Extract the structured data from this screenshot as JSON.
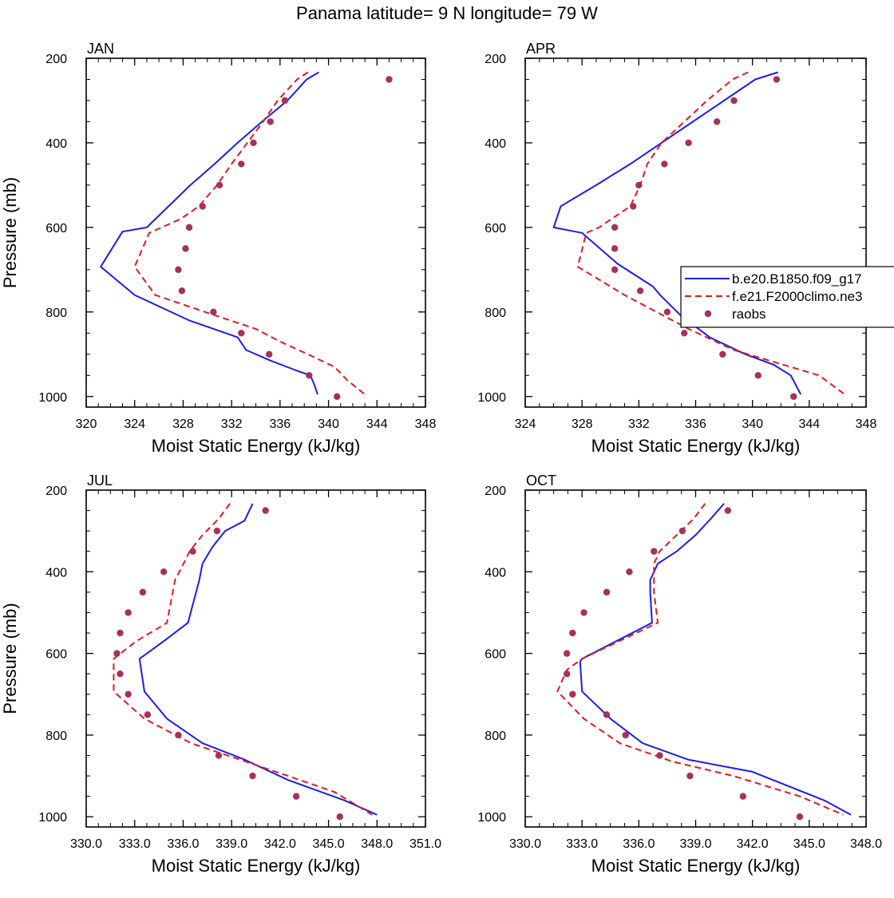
{
  "figure": {
    "title": "Panama  latitude= 9 N longitude= 79 W"
  },
  "colors": {
    "model_b": "#1c1cf0",
    "model_f": "#e81818",
    "raobs": "#a8305a"
  },
  "legend": {
    "placement": "right-center of APR panel",
    "entries": [
      {
        "label": "b.e20.B1850.f09_g17",
        "style": "solid"
      },
      {
        "label": "f.e21.F2000climo.ne3",
        "style": "dashed"
      },
      {
        "label": "raobs",
        "style": "dots"
      }
    ]
  },
  "chart_data": [
    {
      "type": "line",
      "title": "JAN",
      "xlabel": "Moist Static Energy (kJ/kg)",
      "ylabel": "Pressure (mb)",
      "xlim": [
        320,
        348
      ],
      "ylim": [
        200,
        1025
      ],
      "y_inverted": true,
      "xticks": [
        "320",
        "324",
        "328",
        "332",
        "336",
        "340",
        "344",
        "348"
      ],
      "yticks": [
        "200",
        "400",
        "600",
        "800",
        "1000"
      ],
      "series": [
        {
          "name": "b.e20.B1850.f09_g17",
          "style": "solid",
          "x": [
            339.2,
            338.2,
            336.6,
            334.5,
            332.5,
            330.6,
            328.6,
            326.8,
            325.0,
            323.0,
            321.2,
            324.0,
            328.5,
            332.5,
            333.2,
            335.2,
            337.5,
            338.5,
            338.8,
            339.1
          ],
          "y": [
            233,
            250,
            300,
            350,
            400,
            450,
            500,
            550,
            600,
            610,
            693,
            760,
            820,
            860,
            890,
            915,
            940,
            950,
            970,
            995
          ]
        },
        {
          "name": "f.e21.F2000climo.ne3",
          "style": "dashed",
          "x": [
            338.3,
            337.4,
            335.8,
            334.6,
            333.3,
            332.0,
            330.8,
            329.3,
            327.8,
            325.2,
            324.0,
            325.7,
            329.8,
            334.0,
            336.0,
            338.3,
            340.5,
            341.5,
            343.0
          ],
          "y": [
            233,
            250,
            300,
            350,
            400,
            450,
            500,
            550,
            580,
            613,
            693,
            760,
            800,
            840,
            870,
            900,
            930,
            960,
            995
          ]
        },
        {
          "name": "raobs",
          "style": "dots",
          "x": [
            345.0,
            336.4,
            335.2,
            333.8,
            332.8,
            331.0,
            329.6,
            328.5,
            328.2,
            327.6,
            327.9,
            330.5,
            332.8,
            335.1,
            338.4,
            340.7
          ],
          "y": [
            250,
            300,
            350,
            400,
            450,
            500,
            550,
            600,
            650,
            700,
            750,
            800,
            850,
            900,
            950,
            1000
          ]
        }
      ]
    },
    {
      "type": "line",
      "title": "APR",
      "xlabel": "Moist Static Energy (kJ/kg)",
      "ylabel": "",
      "xlim": [
        324,
        348
      ],
      "ylim": [
        200,
        1025
      ],
      "y_inverted": true,
      "xticks": [
        "324",
        "328",
        "332",
        "336",
        "340",
        "344",
        "348"
      ],
      "yticks": [
        "200",
        "400",
        "600",
        "800",
        "1000"
      ],
      "series": [
        {
          "name": "b.e20.B1850.f09_g17",
          "style": "solid",
          "x": [
            341.8,
            340.2,
            338.0,
            335.8,
            333.6,
            331.4,
            329.0,
            326.5,
            326.0,
            328.0,
            330.5,
            333.0,
            333.5,
            335.0,
            337.0,
            339.5,
            341.5,
            342.7,
            343.4
          ],
          "y": [
            233,
            250,
            300,
            350,
            400,
            450,
            500,
            550,
            600,
            613,
            686,
            740,
            760,
            810,
            860,
            900,
            925,
            950,
            995
          ]
        },
        {
          "name": "f.e21.F2000climo.ne3",
          "style": "dashed",
          "x": [
            339.7,
            338.6,
            336.8,
            335.2,
            333.6,
            332.6,
            332.1,
            331.4,
            329.2,
            328.3,
            327.7,
            331.0,
            335.5,
            338.7,
            341.7,
            344.7,
            346.5
          ],
          "y": [
            233,
            250,
            300,
            350,
            400,
            450,
            500,
            550,
            600,
            613,
            693,
            760,
            840,
            890,
            920,
            950,
            995
          ]
        },
        {
          "name": "raobs",
          "style": "dots",
          "x": [
            341.7,
            338.7,
            337.5,
            335.5,
            333.8,
            332.0,
            331.6,
            330.3,
            330.3,
            330.3,
            332.1,
            334.0,
            335.2,
            337.9,
            340.4,
            342.9
          ],
          "y": [
            250,
            300,
            350,
            400,
            450,
            500,
            550,
            600,
            650,
            700,
            750,
            800,
            850,
            900,
            950,
            1000
          ]
        }
      ]
    },
    {
      "type": "line",
      "title": "JUL",
      "xlabel": "Moist Static Energy (kJ/kg)",
      "ylabel": "Pressure (mb)",
      "xlim": [
        330,
        351
      ],
      "ylim": [
        200,
        1025
      ],
      "y_inverted": true,
      "xticks": [
        "330.0",
        "333.0",
        "336.0",
        "339.0",
        "342.0",
        "345.0",
        "348.0",
        "351.0"
      ],
      "yticks": [
        "200",
        "400",
        "600",
        "800",
        "1000"
      ],
      "series": [
        {
          "name": "b.e20.B1850.f09_g17",
          "style": "solid",
          "x": [
            340.3,
            339.8,
            338.6,
            337.8,
            337.2,
            337.0,
            336.6,
            336.3,
            334.8,
            333.3,
            333.6,
            335.0,
            337.2,
            339.8,
            342.5,
            346.0,
            348.0
          ],
          "y": [
            233,
            275,
            300,
            340,
            380,
            420,
            480,
            525,
            570,
            613,
            693,
            760,
            820,
            860,
            910,
            960,
            995
          ]
        },
        {
          "name": "f.e21.F2000climo.ne3",
          "style": "dashed",
          "x": [
            338.9,
            338.2,
            337.2,
            336.4,
            335.9,
            335.5,
            335.0,
            333.1,
            331.7,
            331.7,
            333.6,
            336.5,
            339.5,
            342.5,
            345.4,
            347.7
          ],
          "y": [
            233,
            270,
            310,
            350,
            390,
            420,
            525,
            570,
            613,
            693,
            760,
            820,
            860,
            900,
            940,
            995
          ]
        },
        {
          "name": "raobs",
          "style": "dots",
          "x": [
            341.1,
            338.1,
            336.6,
            334.8,
            333.5,
            332.6,
            332.1,
            331.9,
            332.1,
            332.6,
            333.8,
            335.7,
            338.2,
            340.3,
            343.0,
            345.7
          ],
          "y": [
            250,
            300,
            350,
            400,
            450,
            500,
            550,
            600,
            650,
            700,
            750,
            800,
            850,
            900,
            950,
            1000
          ]
        }
      ]
    },
    {
      "type": "line",
      "title": "OCT",
      "xlabel": "Moist Static Energy (kJ/kg)",
      "ylabel": "",
      "xlim": [
        330,
        348
      ],
      "ylim": [
        200,
        1025
      ],
      "y_inverted": true,
      "xticks": [
        "330.0",
        "333.0",
        "336.0",
        "339.0",
        "342.0",
        "345.0",
        "348.0"
      ],
      "yticks": [
        "200",
        "400",
        "600",
        "800",
        "1000"
      ],
      "series": [
        {
          "name": "b.e20.B1850.f09_g17",
          "style": "solid",
          "x": [
            340.5,
            339.8,
            339.0,
            338.0,
            337.0,
            336.6,
            336.6,
            336.7,
            333.0,
            332.9,
            333.0,
            334.5,
            336.2,
            338.6,
            342.0,
            345.8,
            347.2
          ],
          "y": [
            233,
            270,
            310,
            350,
            380,
            420,
            450,
            525,
            613,
            620,
            693,
            760,
            820,
            860,
            890,
            960,
            995
          ]
        },
        {
          "name": "f.e21.F2000climo.ne3",
          "style": "dashed",
          "x": [
            339.5,
            338.9,
            338.0,
            337.1,
            336.8,
            336.8,
            337.0,
            333.0,
            332.2,
            331.7,
            333.1,
            335.0,
            337.8,
            341.0,
            344.5,
            346.8
          ],
          "y": [
            233,
            270,
            310,
            350,
            380,
            450,
            525,
            613,
            640,
            693,
            760,
            820,
            865,
            900,
            950,
            995
          ]
        },
        {
          "name": "raobs",
          "style": "dots",
          "x": [
            340.7,
            338.3,
            336.8,
            335.5,
            334.3,
            333.1,
            332.5,
            332.2,
            332.2,
            332.5,
            334.3,
            335.3,
            337.1,
            338.7,
            341.5,
            344.5
          ],
          "y": [
            250,
            300,
            350,
            400,
            450,
            500,
            550,
            600,
            650,
            700,
            750,
            800,
            850,
            900,
            950,
            1000
          ]
        }
      ]
    }
  ]
}
